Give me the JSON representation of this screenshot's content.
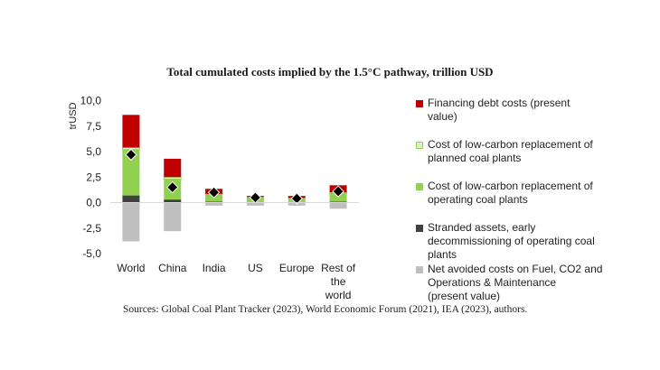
{
  "chart_data": {
    "type": "bar",
    "stacked": true,
    "title": "Total cumulated costs implied by the 1.5°C pathway, trillion USD",
    "ylabel": "trUSD",
    "xlabel": "",
    "ylim": [
      -5,
      10
    ],
    "yticks": [
      "10,0",
      "7,5",
      "5,0",
      "2,5",
      "0,0",
      "-2,5",
      "-5,0"
    ],
    "ytick_values": [
      10,
      7.5,
      5,
      2.5,
      0,
      -2.5,
      -5
    ],
    "categories": [
      "World",
      "China",
      "India",
      "US",
      "Europe",
      "Rest of the world"
    ],
    "category_lines": [
      [
        "World"
      ],
      [
        "China"
      ],
      [
        "India"
      ],
      [
        "US"
      ],
      [
        "Europe"
      ],
      [
        "Rest of",
        "the",
        "world"
      ]
    ],
    "series": [
      {
        "name": "Financing debt costs (present value)",
        "color": "#c00000",
        "values": [
          3.2,
          1.8,
          0.5,
          0.1,
          0.2,
          0.7
        ]
      },
      {
        "name": "Cost of low-carbon replacement of planned coal plants",
        "color": "#d9f0c4",
        "values": [
          0.2,
          0.2,
          0.05,
          0.0,
          0.0,
          0.1
        ]
      },
      {
        "name": "Cost of low-carbon replacement of operating coal plants",
        "color": "#92d050",
        "values": [
          4.5,
          2.0,
          0.7,
          0.5,
          0.4,
          0.8
        ]
      },
      {
        "name": "Stranded assets, early decommissioning of operating coal plants",
        "color": "#404040",
        "values": [
          0.7,
          0.3,
          0.1,
          0.05,
          0.05,
          0.1
        ]
      },
      {
        "name": "Net avoided costs on Fuel, CO2 and Operations & Maintenance (present value)",
        "color": "#bfbfbf",
        "values": [
          -3.8,
          -2.8,
          -0.3,
          -0.3,
          -0.3,
          -0.6
        ]
      }
    ],
    "net_total": {
      "values": [
        4.7,
        1.5,
        1.0,
        0.5,
        0.4,
        1.1
      ],
      "marker": "diamond",
      "color": "#000000"
    },
    "legend_position": "right",
    "grid": false
  },
  "legend_lines": [
    [
      "Financing debt costs (present",
      "value)"
    ],
    [
      "Cost of low-carbon replacement of",
      "planned coal plants"
    ],
    [
      "Cost of low-carbon replacement of",
      "operating coal plants"
    ],
    [
      "Stranded assets, early",
      "decommissioning of operating coal",
      "plants"
    ],
    [
      "Net avoided costs on Fuel, CO2 and",
      "Operations & Maintenance",
      "(present value)"
    ]
  ],
  "source": "Sources: Global Coal Plant Tracker (2023), World Economic Forum (2021), IEA (2023), authors."
}
